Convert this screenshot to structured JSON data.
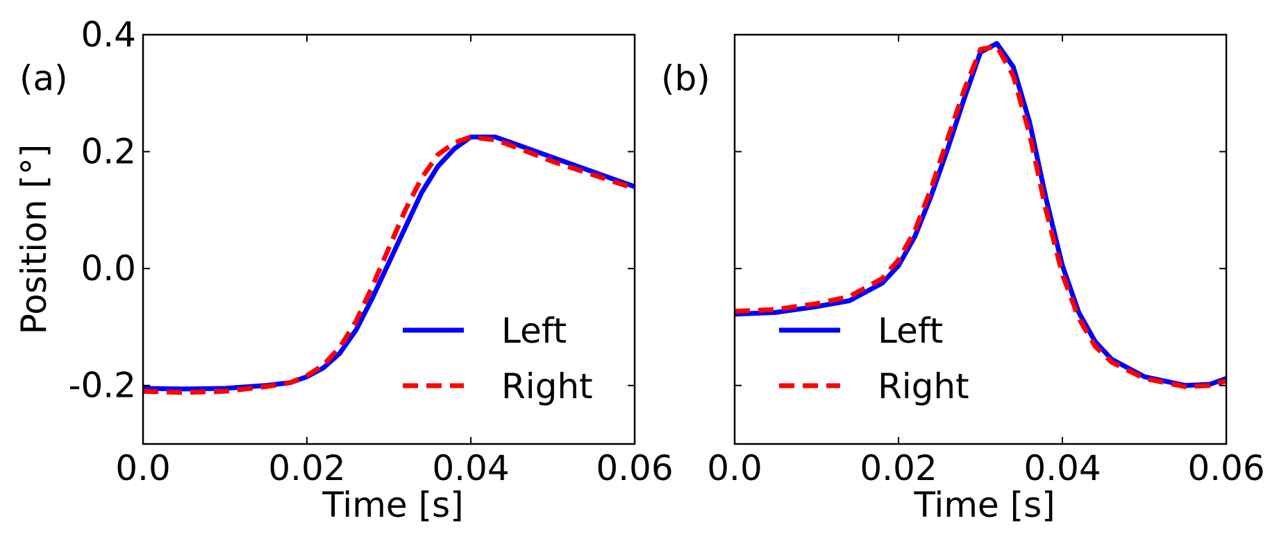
{
  "colors": {
    "left": "#0000ff",
    "right": "#ff0000",
    "axes": "#000000",
    "background": "#ffffff"
  },
  "chart_data": [
    {
      "type": "line",
      "panel_label": "(a)",
      "xlabel": "Time [s]",
      "ylabel": "Position [°]",
      "xlim": [
        0.0,
        0.06
      ],
      "ylim": [
        -0.3,
        0.4
      ],
      "xticks": [
        0.0,
        0.02,
        0.04,
        0.06
      ],
      "xtick_labels": [
        "0.0",
        "0.02",
        "0.04",
        "0.06"
      ],
      "yticks": [
        -0.2,
        0.0,
        0.2,
        0.4
      ],
      "ytick_labels": [
        "-0.2",
        "0.0",
        "0.2",
        "0.4"
      ],
      "legend_position": "lower-right",
      "series": [
        {
          "name": "Left",
          "style": "solid",
          "x": [
            0.0,
            0.005,
            0.01,
            0.015,
            0.018,
            0.02,
            0.022,
            0.024,
            0.026,
            0.028,
            0.03,
            0.032,
            0.034,
            0.036,
            0.038,
            0.04,
            0.043,
            0.046,
            0.05,
            0.055,
            0.06
          ],
          "y": [
            -0.205,
            -0.206,
            -0.205,
            -0.2,
            -0.195,
            -0.185,
            -0.17,
            -0.145,
            -0.105,
            -0.05,
            0.01,
            0.07,
            0.13,
            0.175,
            0.205,
            0.225,
            0.225,
            0.21,
            0.19,
            0.165,
            0.14
          ]
        },
        {
          "name": "Right",
          "style": "dashed",
          "x": [
            0.0,
            0.005,
            0.01,
            0.015,
            0.018,
            0.02,
            0.022,
            0.024,
            0.026,
            0.028,
            0.03,
            0.032,
            0.034,
            0.036,
            0.038,
            0.04,
            0.043,
            0.046,
            0.05,
            0.055,
            0.06
          ],
          "y": [
            -0.21,
            -0.212,
            -0.21,
            -0.202,
            -0.195,
            -0.183,
            -0.165,
            -0.135,
            -0.09,
            -0.03,
            0.035,
            0.1,
            0.155,
            0.195,
            0.215,
            0.225,
            0.22,
            0.205,
            0.183,
            0.16,
            0.137
          ]
        }
      ]
    },
    {
      "type": "line",
      "panel_label": "(b)",
      "xlabel": "Time [s]",
      "ylabel": "",
      "xlim": [
        0.0,
        0.06
      ],
      "ylim": [
        -0.3,
        0.4
      ],
      "xticks": [
        0.0,
        0.02,
        0.04,
        0.06
      ],
      "xtick_labels": [
        "0.0",
        "0.02",
        "0.04",
        "0.06"
      ],
      "yticks": [
        -0.2,
        0.0,
        0.2,
        0.4
      ],
      "ytick_labels": [],
      "legend_position": "lower-left",
      "series": [
        {
          "name": "Left",
          "style": "solid",
          "x": [
            0.0,
            0.005,
            0.01,
            0.014,
            0.018,
            0.02,
            0.022,
            0.024,
            0.026,
            0.028,
            0.03,
            0.032,
            0.034,
            0.036,
            0.038,
            0.04,
            0.042,
            0.044,
            0.046,
            0.05,
            0.055,
            0.058,
            0.06
          ],
          "y": [
            -0.078,
            -0.075,
            -0.065,
            -0.055,
            -0.025,
            0.005,
            0.055,
            0.125,
            0.205,
            0.29,
            0.37,
            0.385,
            0.345,
            0.25,
            0.12,
            0.005,
            -0.075,
            -0.125,
            -0.155,
            -0.185,
            -0.2,
            -0.198,
            -0.188
          ]
        },
        {
          "name": "Right",
          "style": "dashed",
          "x": [
            0.0,
            0.005,
            0.01,
            0.014,
            0.018,
            0.02,
            0.022,
            0.024,
            0.026,
            0.028,
            0.03,
            0.032,
            0.034,
            0.036,
            0.038,
            0.04,
            0.042,
            0.044,
            0.046,
            0.05,
            0.055,
            0.058,
            0.06
          ],
          "y": [
            -0.073,
            -0.07,
            -0.06,
            -0.048,
            -0.017,
            0.015,
            0.065,
            0.138,
            0.222,
            0.305,
            0.375,
            0.38,
            0.33,
            0.23,
            0.1,
            -0.01,
            -0.085,
            -0.133,
            -0.16,
            -0.188,
            -0.202,
            -0.2,
            -0.192
          ]
        }
      ]
    }
  ]
}
